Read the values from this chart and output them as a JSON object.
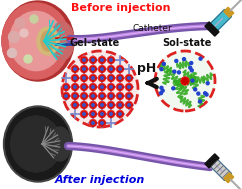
{
  "title_top": "Before injection",
  "title_bottom": "After injection",
  "title_top_color": "#ff1111",
  "title_bottom_color": "#0000dd",
  "label_catheter": "Catheter",
  "label_gel": "Gel-state",
  "label_sol": "Sol-state",
  "label_ph": "pH",
  "bg_color": "#ffffff",
  "figsize": [
    2.42,
    1.89
  ],
  "dpi": 100
}
